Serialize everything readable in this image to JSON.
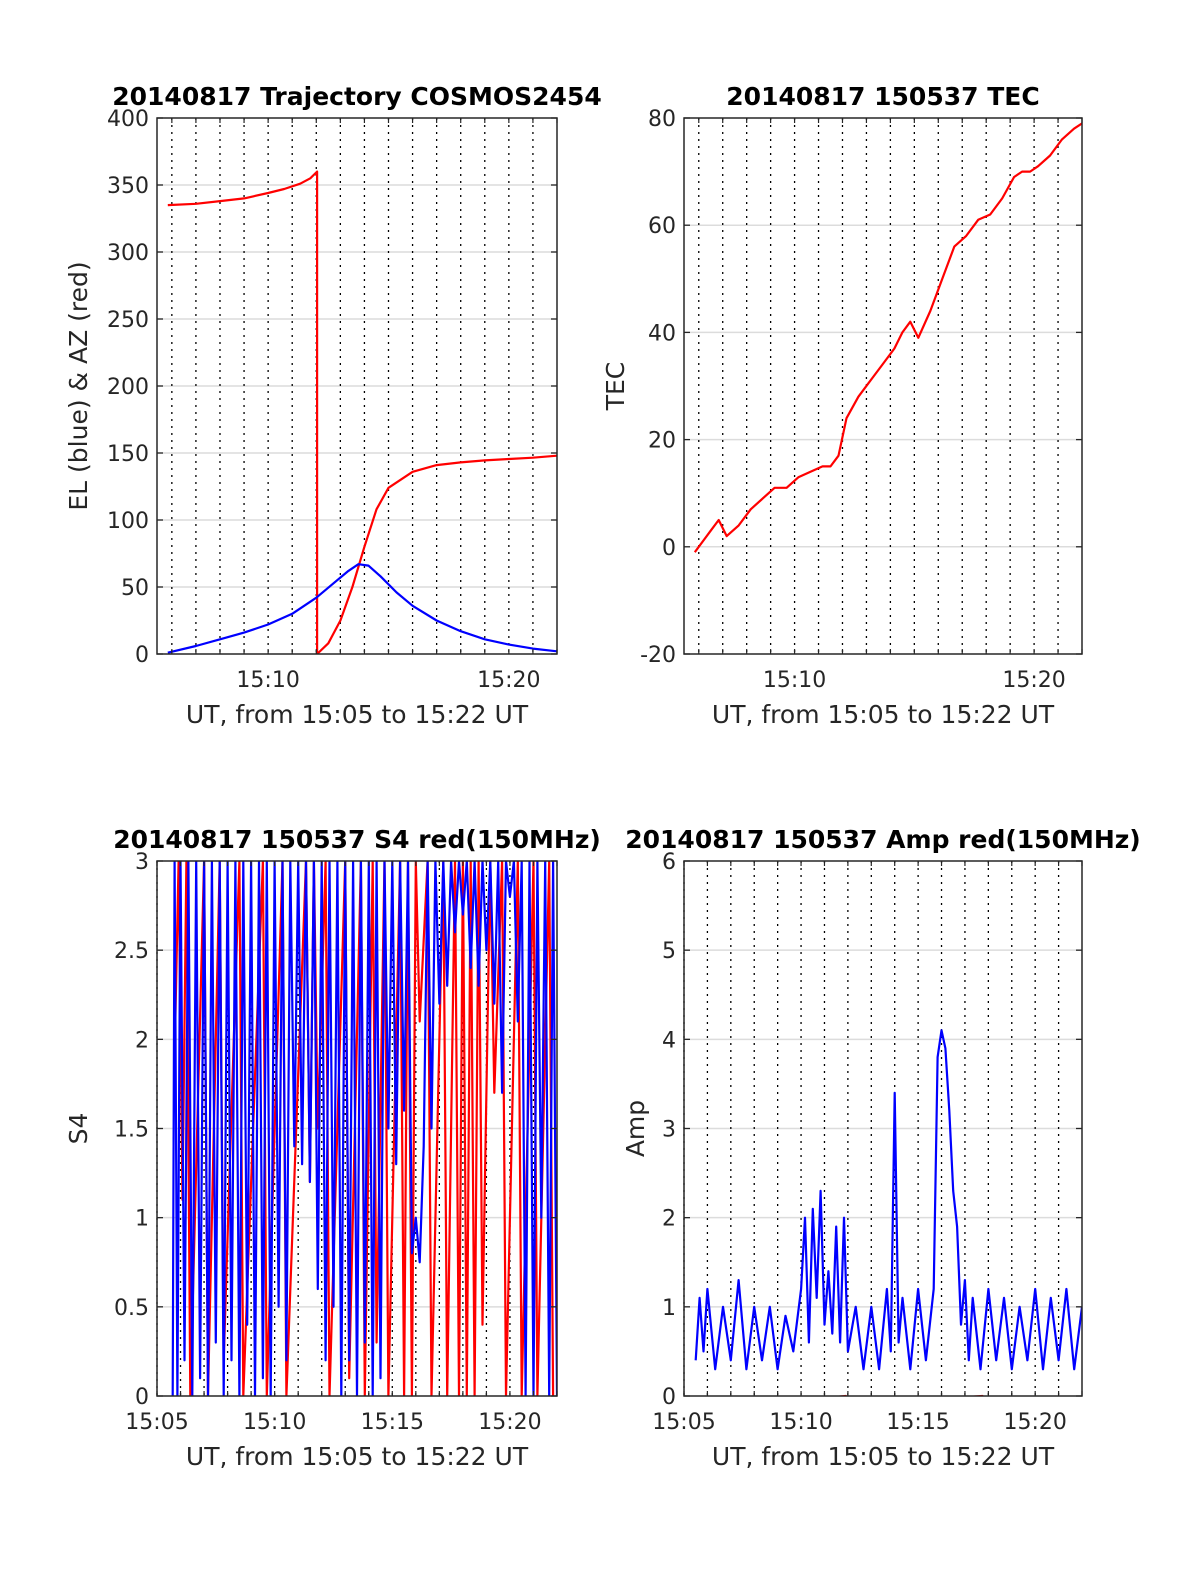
{
  "figure": {
    "background": "#ffffff"
  },
  "chart_data": [
    {
      "type": "line",
      "title": "20140817 Trajectory COSMOS2454",
      "xlabel": "UT, from 15:05 to 15:22 UT",
      "ylabel": "EL (blue) & AZ (red)",
      "xlim": [
        "15:05:23",
        "15:22:00"
      ],
      "ylim": [
        0,
        400
      ],
      "xticks": [
        "15:10",
        "15:20"
      ],
      "yticks": [
        0,
        50,
        100,
        150,
        200,
        250,
        300,
        350,
        400
      ],
      "grid": true,
      "series": [
        {
          "color": "#ff0000",
          "x": [
            "15:05:50",
            "15:07:00",
            "15:08:00",
            "15:09:00",
            "15:10:00",
            "15:10:40",
            "15:11:20",
            "15:11:45",
            "15:12:02",
            "15:12:02",
            "15:12:30",
            "15:13:00",
            "15:13:30",
            "15:14:00",
            "15:14:30",
            "15:15:00",
            "15:16:00",
            "15:17:00",
            "15:18:00",
            "15:19:00",
            "15:20:00",
            "15:21:00",
            "15:22:00"
          ],
          "y": [
            335,
            336,
            338,
            340,
            344,
            347,
            351,
            355,
            360,
            0,
            8,
            25,
            50,
            80,
            108,
            124,
            136,
            141,
            143,
            144.5,
            145.5,
            146.5,
            148
          ]
        },
        {
          "color": "#0000ff",
          "x": [
            "15:05:50",
            "15:07:00",
            "15:08:00",
            "15:09:00",
            "15:10:00",
            "15:11:00",
            "15:12:00",
            "15:12:40",
            "15:13:20",
            "15:13:45",
            "15:14:10",
            "15:14:40",
            "15:15:20",
            "15:16:00",
            "15:17:00",
            "15:18:00",
            "15:19:00",
            "15:20:00",
            "15:21:00",
            "15:22:00"
          ],
          "y": [
            1,
            6,
            11,
            16,
            22,
            30,
            42,
            52,
            62,
            67,
            66,
            58,
            46,
            36,
            25,
            17,
            11,
            7,
            4,
            2
          ]
        }
      ]
    },
    {
      "type": "line",
      "title": "20140817 150537 TEC",
      "xlabel": "UT, from 15:05 to 15:22 UT",
      "ylabel": "TEC",
      "xlim": [
        "15:05:23",
        "15:22:00"
      ],
      "ylim": [
        -20,
        80
      ],
      "xticks": [
        "15:10",
        "15:20"
      ],
      "yticks": [
        -20,
        0,
        20,
        40,
        60,
        80
      ],
      "grid": true,
      "series": [
        {
          "color": "#ff0000",
          "x": [
            "15:05:50",
            "15:06:10",
            "15:06:30",
            "15:06:50",
            "15:07:10",
            "15:07:40",
            "15:08:10",
            "15:08:40",
            "15:09:10",
            "15:09:40",
            "15:10:10",
            "15:10:40",
            "15:11:10",
            "15:11:30",
            "15:11:50",
            "15:12:10",
            "15:12:40",
            "15:13:10",
            "15:13:40",
            "15:14:10",
            "15:14:30",
            "15:14:50",
            "15:15:10",
            "15:15:40",
            "15:16:10",
            "15:16:40",
            "15:17:10",
            "15:17:40",
            "15:18:10",
            "15:18:40",
            "15:19:10",
            "15:19:30",
            "15:19:50",
            "15:20:10",
            "15:20:40",
            "15:21:10",
            "15:21:40",
            "15:22:00"
          ],
          "y": [
            -1,
            1,
            3,
            5,
            2,
            4,
            7,
            9,
            11,
            11,
            13,
            14,
            15,
            15,
            17,
            24,
            28,
            31,
            34,
            37,
            40,
            42,
            39,
            44,
            50,
            56,
            58,
            61,
            62,
            65,
            69,
            70,
            70,
            71,
            73,
            76,
            78,
            79
          ]
        }
      ]
    },
    {
      "type": "line",
      "title": "20140817 150537 S4 red(150MHz)",
      "xlabel": "UT, from 15:05 to 15:22 UT",
      "ylabel": "S4",
      "xlim": [
        "15:05:00",
        "15:22:00"
      ],
      "ylim": [
        0,
        3
      ],
      "xticks": [
        "15:05",
        "15:10",
        "15:15",
        "15:20"
      ],
      "yticks": [
        0,
        0.5,
        1,
        1.5,
        2,
        2.5,
        3
      ],
      "grid": true,
      "series": [
        {
          "color": "#ff0000",
          "x": [
            "15:05:45",
            "15:05:55",
            "15:06:05",
            "15:06:15",
            "15:06:25",
            "15:07:00",
            "15:07:10",
            "15:07:40",
            "15:07:50",
            "15:08:30",
            "15:08:40",
            "15:09:30",
            "15:09:40",
            "15:10:20",
            "15:10:30",
            "15:11:20",
            "15:11:30",
            "15:11:40",
            "15:11:50",
            "15:12:10",
            "15:12:20",
            "15:13:00",
            "15:13:10",
            "15:13:40",
            "15:13:50",
            "15:14:10",
            "15:14:20",
            "15:14:40",
            "15:14:50",
            "15:15:20",
            "15:15:30",
            "15:15:40",
            "15:15:50",
            "15:16:00",
            "15:16:10",
            "15:16:30",
            "15:16:40",
            "15:17:10",
            "15:17:20",
            "15:17:40",
            "15:17:50",
            "15:18:00",
            "15:18:10",
            "15:18:20",
            "15:18:30",
            "15:18:40",
            "15:18:50",
            "15:19:10",
            "15:19:20",
            "15:19:40",
            "15:19:50",
            "15:20:20",
            "15:20:30",
            "15:21:00",
            "15:21:10",
            "15:21:40",
            "15:21:50"
          ],
          "y": [
            1.9,
            3,
            1.1,
            3,
            0,
            3,
            0,
            3,
            0.2,
            3,
            0,
            3,
            0,
            3,
            0,
            3,
            1.2,
            3,
            1.5,
            3,
            0,
            3,
            0.1,
            3,
            0,
            3,
            0.3,
            3,
            0,
            3,
            0,
            3,
            0,
            3,
            2.1,
            3,
            0,
            3,
            0,
            3,
            0,
            3,
            0,
            3,
            0,
            3,
            0.4,
            3,
            1.7,
            3,
            0,
            3,
            0,
            3,
            0,
            3,
            0
          ]
        },
        {
          "color": "#0000ff",
          "x": [
            "15:05:40",
            "15:05:45",
            "15:05:52",
            "15:06:00",
            "15:06:10",
            "15:06:20",
            "15:06:30",
            "15:06:40",
            "15:06:50",
            "15:07:00",
            "15:07:10",
            "15:07:20",
            "15:07:30",
            "15:07:40",
            "15:07:50",
            "15:08:00",
            "15:08:10",
            "15:08:20",
            "15:08:30",
            "15:08:40",
            "15:08:50",
            "15:09:00",
            "15:09:10",
            "15:09:20",
            "15:09:30",
            "15:09:40",
            "15:09:50",
            "15:10:00",
            "15:10:10",
            "15:10:20",
            "15:10:30",
            "15:10:40",
            "15:10:50",
            "15:11:00",
            "15:11:10",
            "15:11:20",
            "15:11:30",
            "15:11:40",
            "15:11:50",
            "15:12:00",
            "15:12:10",
            "15:12:20",
            "15:12:30",
            "15:12:40",
            "15:12:50",
            "15:13:00",
            "15:13:10",
            "15:13:20",
            "15:13:30",
            "15:13:40",
            "15:13:50",
            "15:14:00",
            "15:14:10",
            "15:14:20",
            "15:14:30",
            "15:14:40",
            "15:14:50",
            "15:15:00",
            "15:15:10",
            "15:15:20",
            "15:15:30",
            "15:15:40",
            "15:15:50",
            "15:16:00",
            "15:16:10",
            "15:16:20",
            "15:16:30",
            "15:16:40",
            "15:16:50",
            "15:17:00",
            "15:17:10",
            "15:17:20",
            "15:17:30",
            "15:17:40",
            "15:17:50",
            "15:18:00",
            "15:18:10",
            "15:18:20",
            "15:18:30",
            "15:18:40",
            "15:18:50",
            "15:19:00",
            "15:19:10",
            "15:19:20",
            "15:19:30",
            "15:19:40",
            "15:19:50",
            "15:20:00",
            "15:20:10",
            "15:20:20",
            "15:20:30",
            "15:20:40",
            "15:20:50",
            "15:21:00",
            "15:21:10",
            "15:21:20",
            "15:21:30",
            "15:21:40",
            "15:21:50",
            "15:22:00"
          ],
          "y": [
            0,
            3,
            0,
            3,
            0.2,
            3,
            0,
            3,
            0.1,
            3,
            0,
            3,
            0.3,
            3,
            0,
            3,
            0.2,
            3,
            0,
            3,
            0.4,
            3,
            0,
            3,
            0.1,
            3,
            0,
            3,
            0.5,
            3,
            0.2,
            3,
            1.4,
            3,
            1.3,
            3,
            1.2,
            3,
            0.6,
            3,
            0.2,
            3,
            0.5,
            3,
            0,
            3,
            0.2,
            3,
            0,
            3,
            0.3,
            3,
            0,
            3,
            0.1,
            3,
            1.5,
            3,
            1.3,
            3,
            1.6,
            3,
            0.8,
            1.0,
            0.75,
            1.4,
            3,
            1.5,
            3,
            2.2,
            3,
            2.3,
            3,
            2.6,
            3,
            2.7,
            3,
            2.4,
            3,
            2.3,
            3,
            2.5,
            3,
            2.2,
            3,
            1.7,
            3,
            2.8,
            3,
            2.1,
            3,
            0,
            3,
            0,
            3,
            1.0,
            3,
            0,
            3,
            0
          ]
        }
      ]
    },
    {
      "type": "line",
      "title": "20140817 150537 Amp red(150MHz)",
      "xlabel": "UT, from 15:05 to 15:22 UT",
      "ylabel": "Amp",
      "xlim": [
        "15:05:00",
        "15:22:00"
      ],
      "ylim": [
        0,
        6
      ],
      "xticks": [
        "15:05",
        "15:10",
        "15:15",
        "15:20"
      ],
      "yticks": [
        0,
        1,
        2,
        3,
        4,
        5,
        6
      ],
      "grid": true,
      "series": [
        {
          "color": "#ff0000",
          "x": [
            "15:07:30",
            "15:07:35",
            "15:11:55",
            "15:12:00",
            "15:17:45",
            "15:17:50"
          ],
          "y": [
            0,
            -0.1,
            0,
            -0.1,
            0,
            -0.1
          ]
        },
        {
          "color": "#0000ff",
          "x": [
            "15:05:30",
            "15:05:40",
            "15:05:50",
            "15:06:00",
            "15:06:20",
            "15:06:40",
            "15:07:00",
            "15:07:20",
            "15:07:40",
            "15:08:00",
            "15:08:20",
            "15:08:40",
            "15:09:00",
            "15:09:20",
            "15:09:40",
            "15:10:00",
            "15:10:10",
            "15:10:20",
            "15:10:30",
            "15:10:40",
            "15:10:50",
            "15:11:00",
            "15:11:10",
            "15:11:20",
            "15:11:30",
            "15:11:40",
            "15:11:50",
            "15:12:00",
            "15:12:20",
            "15:12:40",
            "15:13:00",
            "15:13:20",
            "15:13:40",
            "15:13:50",
            "15:14:00",
            "15:14:10",
            "15:14:20",
            "15:14:40",
            "15:15:00",
            "15:15:20",
            "15:15:40",
            "15:15:50",
            "15:16:00",
            "15:16:10",
            "15:16:20",
            "15:16:30",
            "15:16:40",
            "15:16:50",
            "15:17:00",
            "15:17:10",
            "15:17:20",
            "15:17:40",
            "15:18:00",
            "15:18:20",
            "15:18:40",
            "15:19:00",
            "15:19:20",
            "15:19:40",
            "15:20:00",
            "15:20:20",
            "15:20:40",
            "15:21:00",
            "15:21:20",
            "15:21:40",
            "15:22:00"
          ],
          "y": [
            0.4,
            1.1,
            0.5,
            1.2,
            0.3,
            1.0,
            0.4,
            1.3,
            0.3,
            1.0,
            0.4,
            1.0,
            0.3,
            0.9,
            0.5,
            1.2,
            2.0,
            0.6,
            2.1,
            1.1,
            2.3,
            0.8,
            1.4,
            0.7,
            1.9,
            0.6,
            2.0,
            0.5,
            1.0,
            0.3,
            1.0,
            0.3,
            1.2,
            0.5,
            3.4,
            0.6,
            1.1,
            0.3,
            1.2,
            0.4,
            1.2,
            3.8,
            4.1,
            3.9,
            3.2,
            2.3,
            1.9,
            0.8,
            1.3,
            0.4,
            1.1,
            0.3,
            1.2,
            0.4,
            1.1,
            0.3,
            1.0,
            0.4,
            1.2,
            0.3,
            1.1,
            0.4,
            1.2,
            0.3,
            1.0
          ]
        }
      ]
    }
  ]
}
